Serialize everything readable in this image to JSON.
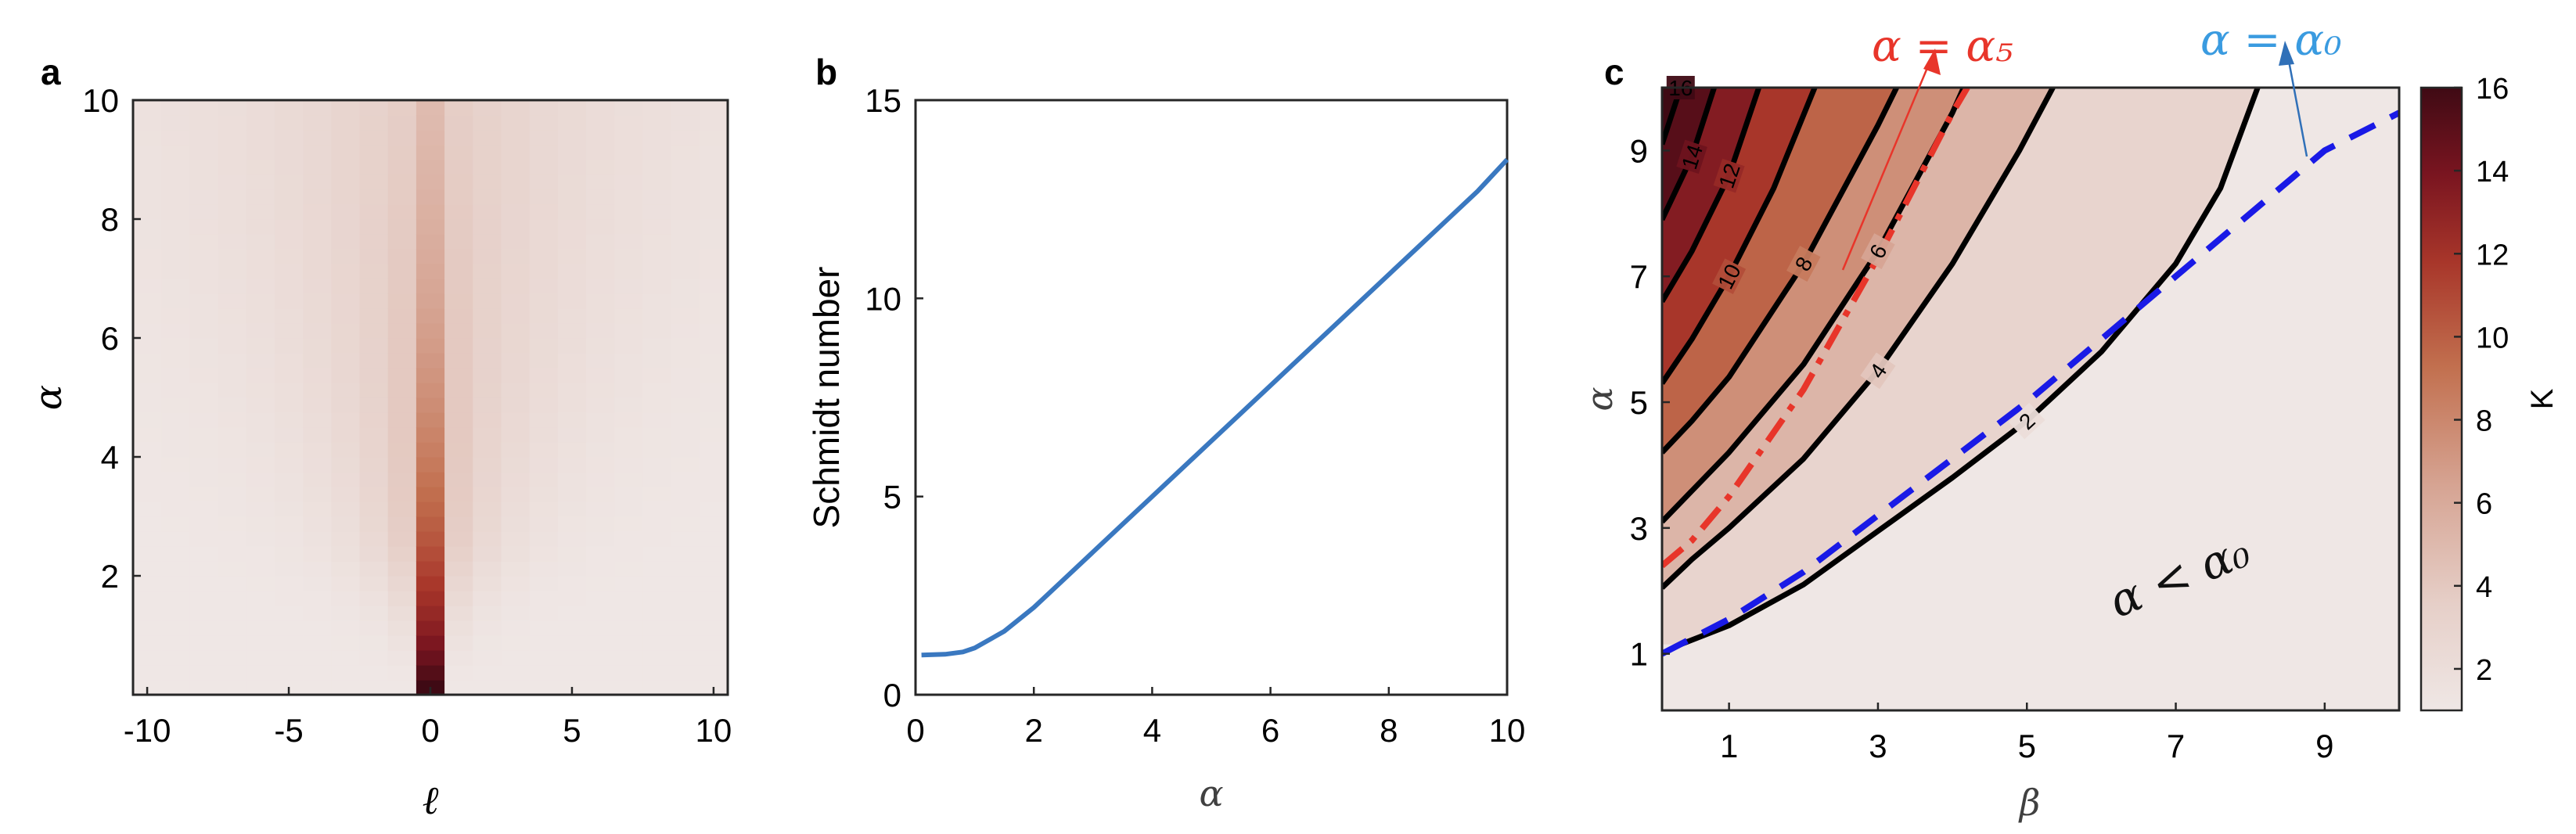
{
  "figure": {
    "panels": [
      {
        "id": "a",
        "label": "a",
        "chart_data": {
          "type": "heatmap",
          "xlabel": "ℓ",
          "ylabel": "α",
          "xlim": [
            -10.5,
            10.5
          ],
          "ylim": [
            0,
            10
          ],
          "x_ticks": [
            "-10",
            "-5",
            "0",
            "5",
            "10"
          ],
          "y_ticks": [
            "2",
            "4",
            "6",
            "8",
            "10"
          ],
          "x": [
            -10,
            -9,
            -8,
            -7,
            -6,
            -5,
            -4,
            -3,
            -2,
            -1,
            0,
            1,
            2,
            3,
            4,
            5,
            6,
            7,
            8,
            9,
            10
          ],
          "y_range": [
            0,
            10
          ],
          "colormap": [
            "#efe7e5",
            "#e6cfc8",
            "#d6a493",
            "#c2704f",
            "#a8362a",
            "#7a1520",
            "#3f0a14"
          ],
          "peak_value_center": 1.0
        }
      },
      {
        "id": "b",
        "label": "b",
        "chart_data": {
          "type": "line",
          "xlabel": "α",
          "ylabel": "Schmidt number",
          "xlim": [
            0,
            10
          ],
          "ylim": [
            0,
            15
          ],
          "x_ticks": [
            "0",
            "2",
            "4",
            "6",
            "8",
            "10"
          ],
          "y_ticks": [
            "0",
            "5",
            "10",
            "15"
          ],
          "series": [
            {
              "color": "#3a78c0",
              "x": [
                0.1,
                0.5,
                0.8,
                1.0,
                1.5,
                2.0,
                2.5,
                3.0,
                3.5,
                4.0,
                4.5,
                5.0,
                5.5,
                6.0,
                6.5,
                7.0,
                7.5,
                8.0,
                8.5,
                9.0,
                9.5,
                10.0
              ],
              "y": [
                1.0,
                1.02,
                1.08,
                1.18,
                1.6,
                2.2,
                2.9,
                3.6,
                4.3,
                5.0,
                5.7,
                6.4,
                7.1,
                7.8,
                8.5,
                9.2,
                9.9,
                10.6,
                11.3,
                12.0,
                12.7,
                13.5
              ]
            }
          ]
        }
      },
      {
        "id": "c",
        "label": "c",
        "chart_data": {
          "type": "heatmap",
          "xlabel": "β",
          "ylabel": "α",
          "xlim": [
            0.1,
            10
          ],
          "ylim": [
            0.1,
            10
          ],
          "x_ticks": [
            "1",
            "3",
            "5",
            "7",
            "9"
          ],
          "y_ticks": [
            "1",
            "3",
            "5",
            "7",
            "9"
          ],
          "colorbar": {
            "label": "K",
            "range": [
              1,
              16
            ],
            "ticks": [
              "2",
              "4",
              "6",
              "8",
              "10",
              "12",
              "14",
              "16"
            ]
          },
          "colormap": [
            "#efe7e5",
            "#e6cfc8",
            "#d6a493",
            "#c2704f",
            "#a8362a",
            "#7a1520",
            "#3f0a14"
          ],
          "contour_levels": [
            {
              "label": "2",
              "points": [
                [
                  0.35,
                  1.15
                ],
                [
                  1.0,
                  1.45
                ],
                [
                  2.0,
                  2.1
                ],
                [
                  3.0,
                  2.95
                ],
                [
                  4.0,
                  3.8
                ],
                [
                  5.0,
                  4.7
                ],
                [
                  6.0,
                  5.8
                ],
                [
                  7.0,
                  7.2
                ],
                [
                  7.6,
                  8.4
                ],
                [
                  8.1,
                  10.0
                ]
              ]
            },
            {
              "label": "4",
              "points": [
                [
                  0.1,
                  2.05
                ],
                [
                  0.5,
                  2.5
                ],
                [
                  1.0,
                  3.0
                ],
                [
                  2.0,
                  4.1
                ],
                [
                  3.0,
                  5.5
                ],
                [
                  4.0,
                  7.2
                ],
                [
                  4.9,
                  9.0
                ],
                [
                  5.35,
                  10.0
                ]
              ]
            },
            {
              "label": "6",
              "points": [
                [
                  0.1,
                  3.1
                ],
                [
                  1.0,
                  4.2
                ],
                [
                  2.0,
                  5.6
                ],
                [
                  3.0,
                  7.4
                ],
                [
                  4.0,
                  9.6
                ],
                [
                  4.15,
                  10.0
                ]
              ]
            },
            {
              "label": "8",
              "points": [
                [
                  0.1,
                  4.2
                ],
                [
                  0.5,
                  4.7
                ],
                [
                  1.0,
                  5.4
                ],
                [
                  2.0,
                  7.2
                ],
                [
                  3.0,
                  9.4
                ],
                [
                  3.25,
                  10.0
                ]
              ]
            },
            {
              "label": "10",
              "points": [
                [
                  0.1,
                  5.3
                ],
                [
                  0.5,
                  6.0
                ],
                [
                  1.0,
                  7.0
                ],
                [
                  1.6,
                  8.4
                ],
                [
                  2.15,
                  10.0
                ]
              ]
            },
            {
              "label": "12",
              "points": [
                [
                  0.1,
                  6.6
                ],
                [
                  0.5,
                  7.4
                ],
                [
                  1.0,
                  8.6
                ],
                [
                  1.4,
                  10.0
                ]
              ]
            },
            {
              "label": "14",
              "points": [
                [
                  0.1,
                  7.9
                ],
                [
                  0.5,
                  8.9
                ],
                [
                  0.8,
                  10.0
                ]
              ]
            },
            {
              "label": "16",
              "points": [
                [
                  0.1,
                  9.1
                ],
                [
                  0.35,
                  10.0
                ]
              ]
            }
          ],
          "series": [
            {
              "name": "α = α₅",
              "color": "#e8352a",
              "style": "dash-dot",
              "points": [
                [
                  0.1,
                  2.4
                ],
                [
                  0.5,
                  2.8
                ],
                [
                  1.0,
                  3.5
                ],
                [
                  2.0,
                  5.2
                ],
                [
                  3.0,
                  7.3
                ],
                [
                  4.0,
                  9.6
                ],
                [
                  4.2,
                  10.0
                ]
              ]
            },
            {
              "name": "α = α₀",
              "color": "#1a1ae6",
              "style": "dashed",
              "points": [
                [
                  0.1,
                  1.0
                ],
                [
                  1.0,
                  1.55
                ],
                [
                  2.0,
                  2.3
                ],
                [
                  3.0,
                  3.2
                ],
                [
                  4.0,
                  4.1
                ],
                [
                  5.0,
                  5.0
                ],
                [
                  6.0,
                  6.0
                ],
                [
                  7.0,
                  7.0
                ],
                [
                  8.0,
                  8.0
                ],
                [
                  9.0,
                  9.0
                ],
                [
                  10.0,
                  9.6
                ]
              ]
            }
          ],
          "annotations": [
            "α = α₅",
            "α = α₀",
            "α < α₀"
          ]
        }
      }
    ]
  }
}
